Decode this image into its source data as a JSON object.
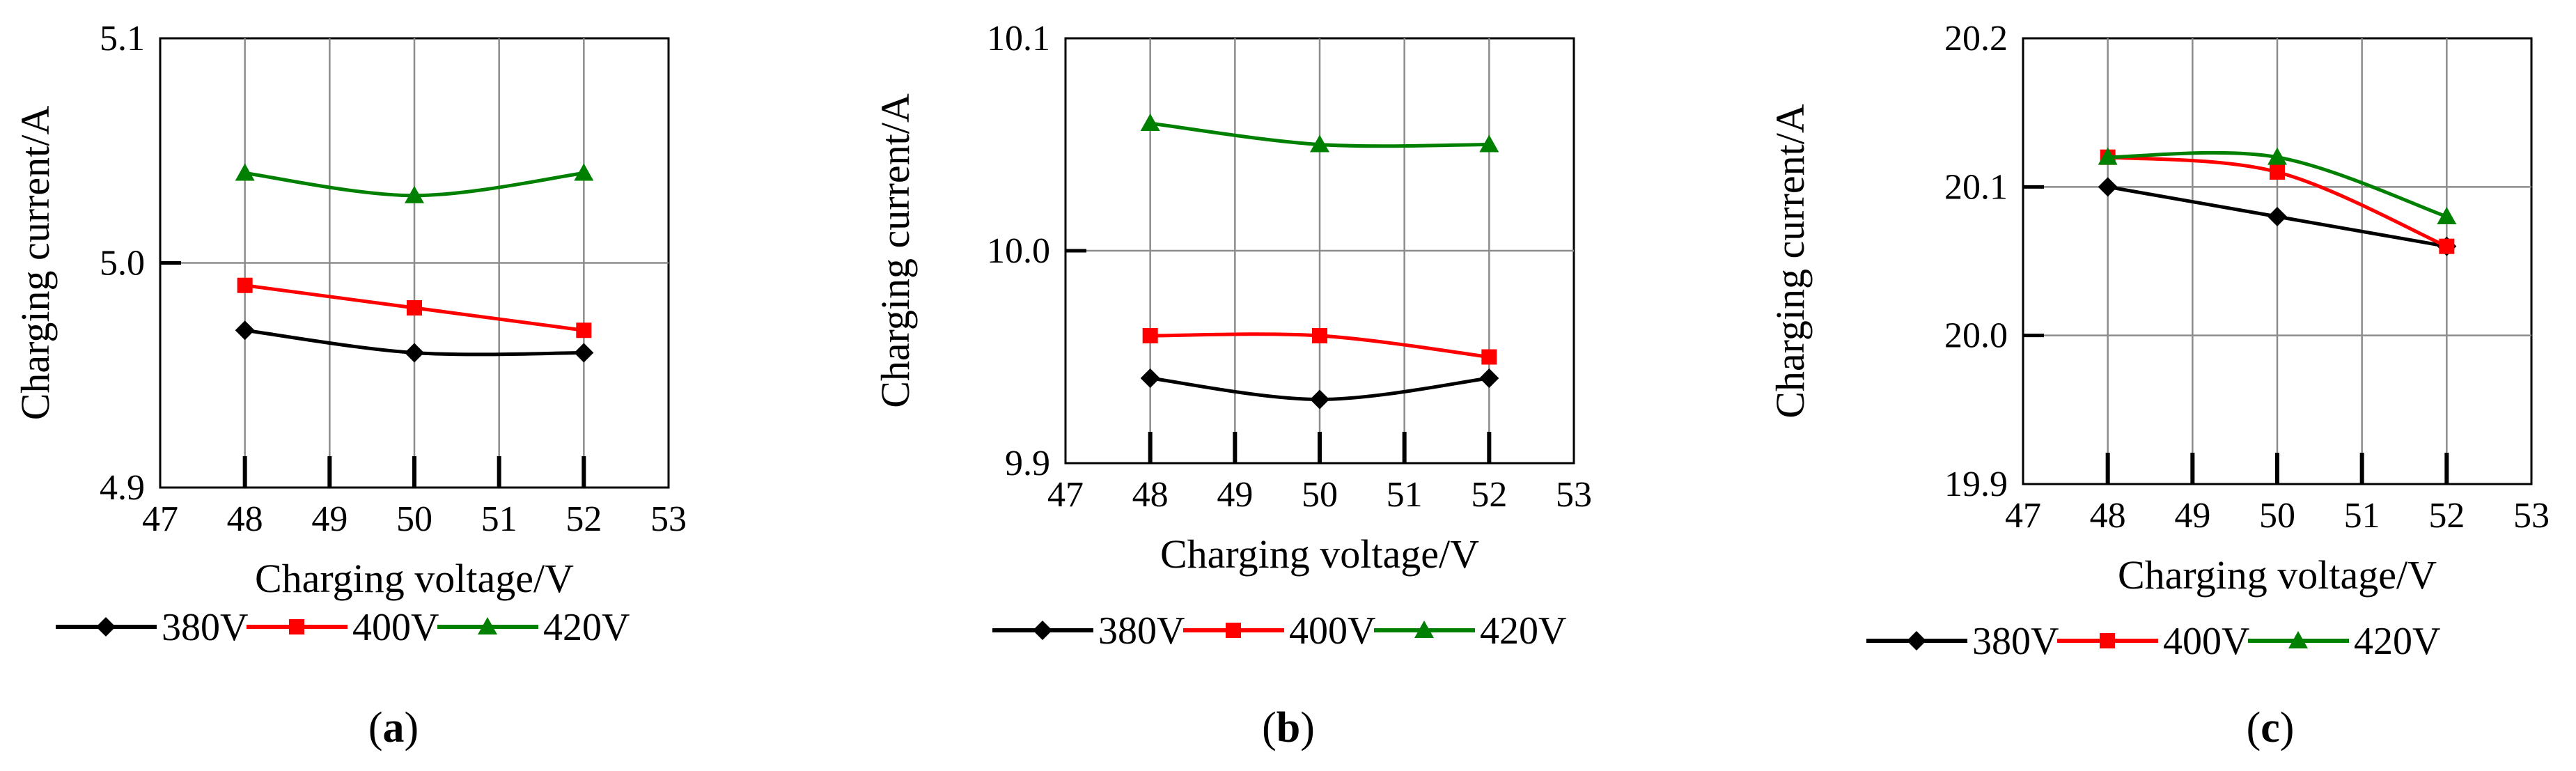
{
  "chart_data": [
    {
      "type": "line",
      "caption_letter": "a",
      "xlabel": "Charging voltage/V",
      "ylabel": "Charging current/A",
      "xlim": [
        47,
        53
      ],
      "ylim": [
        4.9,
        5.1
      ],
      "xticks": [
        "47",
        "48",
        "49",
        "50",
        "51",
        "52",
        "53"
      ],
      "yticks": [
        "4.9",
        "5.0",
        "5.1"
      ],
      "x": [
        48,
        50,
        52
      ],
      "series": [
        {
          "name": "380V",
          "color": "#000000",
          "marker": "diamond",
          "values": [
            4.97,
            4.96,
            4.96
          ]
        },
        {
          "name": "400V",
          "color": "#ff0000",
          "marker": "square",
          "values": [
            4.99,
            4.98,
            4.97
          ]
        },
        {
          "name": "420V",
          "color": "#008000",
          "marker": "triangle",
          "values": [
            5.04,
            5.03,
            5.04
          ]
        }
      ]
    },
    {
      "type": "line",
      "caption_letter": "b",
      "xlabel": "Charging voltage/V",
      "ylabel": "Charging current/A",
      "xlim": [
        47,
        53
      ],
      "ylim": [
        9.9,
        10.1
      ],
      "xticks": [
        "47",
        "48",
        "49",
        "50",
        "51",
        "52",
        "53"
      ],
      "yticks": [
        "9.9",
        "10.0",
        "10.1"
      ],
      "x": [
        48,
        50,
        52
      ],
      "series": [
        {
          "name": "380V",
          "color": "#000000",
          "marker": "diamond",
          "values": [
            9.94,
            9.93,
            9.94
          ]
        },
        {
          "name": "400V",
          "color": "#ff0000",
          "marker": "square",
          "values": [
            9.96,
            9.96,
            9.95
          ]
        },
        {
          "name": "420V",
          "color": "#008000",
          "marker": "triangle",
          "values": [
            10.06,
            10.05,
            10.05
          ]
        }
      ]
    },
    {
      "type": "line",
      "caption_letter": "c",
      "xlabel": "Charging voltage/V",
      "ylabel": "Charging current/A",
      "xlim": [
        47,
        53
      ],
      "ylim": [
        19.9,
        20.2
      ],
      "xticks": [
        "47",
        "48",
        "49",
        "50",
        "51",
        "52",
        "53"
      ],
      "yticks": [
        "19.9",
        "20.0",
        "20.1",
        "20.2"
      ],
      "x": [
        48,
        50,
        52
      ],
      "series": [
        {
          "name": "380V",
          "color": "#000000",
          "marker": "diamond",
          "values": [
            20.1,
            20.08,
            20.06
          ]
        },
        {
          "name": "400V",
          "color": "#ff0000",
          "marker": "square",
          "values": [
            20.12,
            20.11,
            20.06
          ]
        },
        {
          "name": "420V",
          "color": "#008000",
          "marker": "triangle",
          "values": [
            20.12,
            20.12,
            20.08
          ]
        }
      ]
    }
  ]
}
